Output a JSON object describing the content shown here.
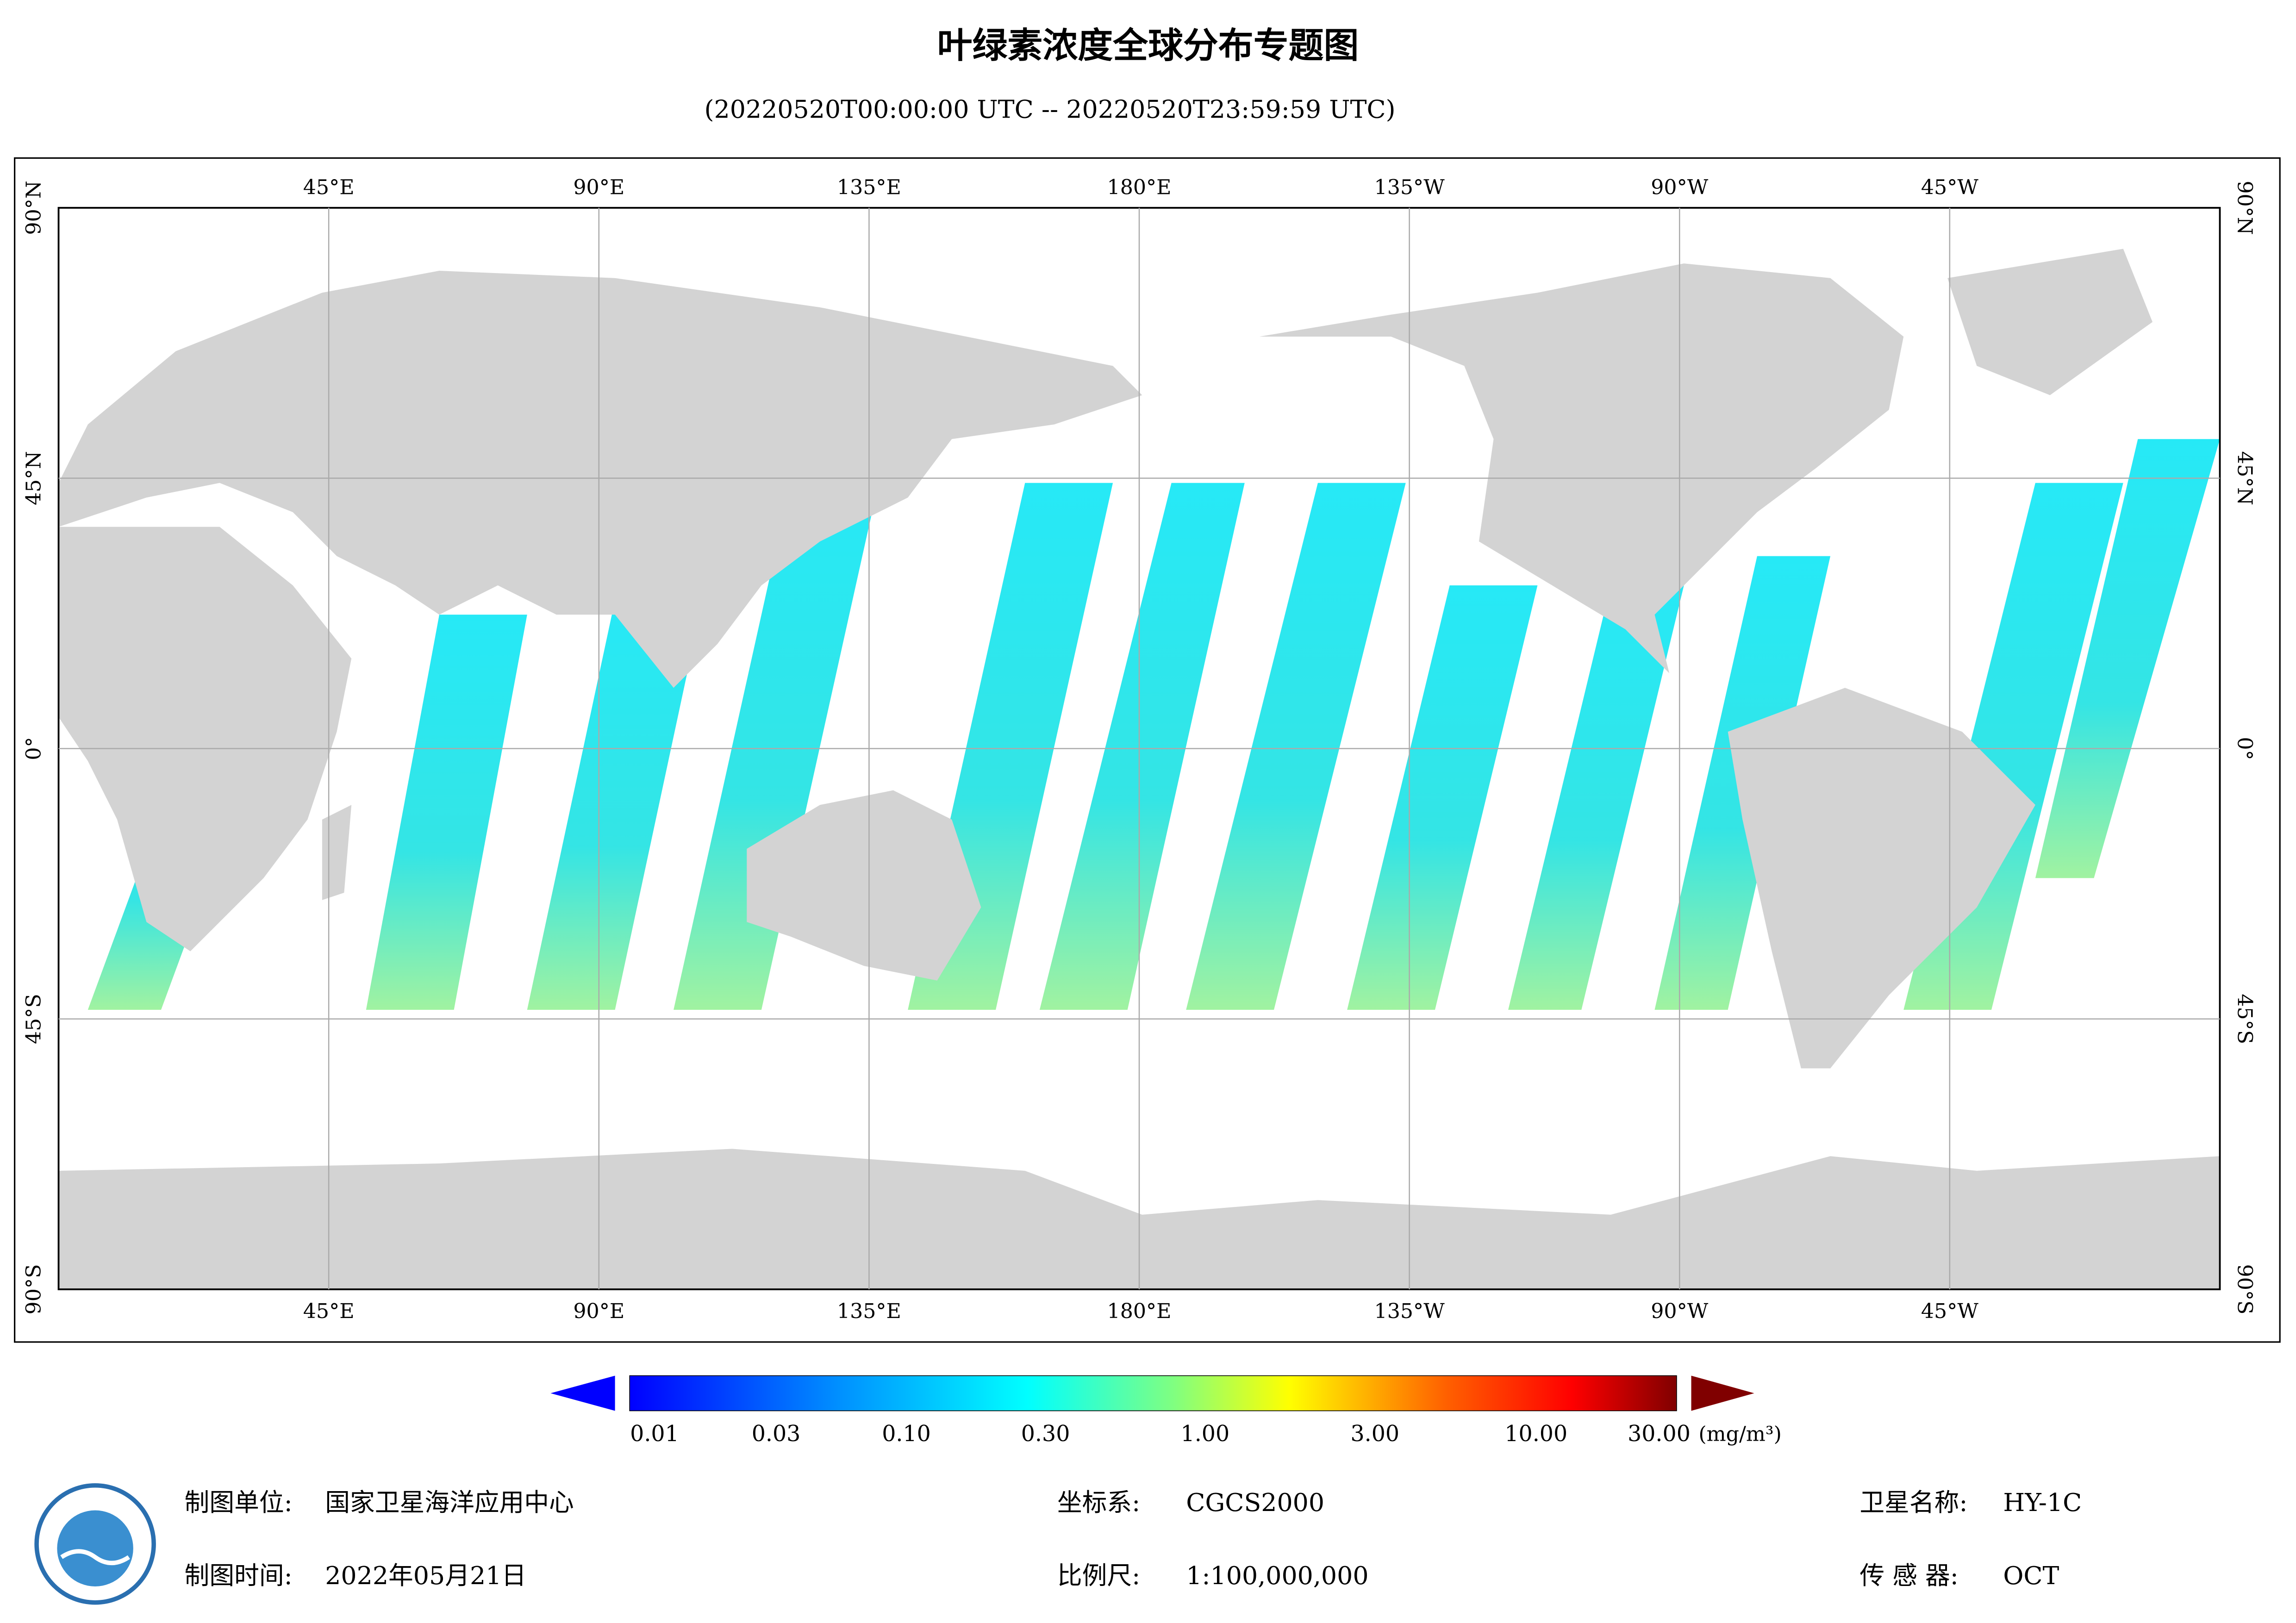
{
  "header": {
    "title": "叶绿素浓度全球分布专题图",
    "subtitle": "(20220520T00:00:00 UTC -- 20220520T23:59:59 UTC)"
  },
  "map": {
    "lon_labels": [
      "45°E",
      "90°E",
      "135°E",
      "180°E",
      "135°W",
      "90°W",
      "45°W"
    ],
    "lat_labels": [
      "90°N",
      "45°N",
      "0°",
      "45°S",
      "90°S"
    ]
  },
  "legend": {
    "labels": [
      "0.01",
      "0.03",
      "0.10",
      "0.30",
      "1.00",
      "3.00",
      "10.00",
      "30.00"
    ],
    "unit": "(mg/m³)"
  },
  "footer": {
    "unit_label": "制图单位:",
    "unit": "国家卫星海洋应用中心",
    "date_label": "制图时间:",
    "date": "2022年05月21日",
    "crs_label": "坐标系:",
    "crs": "CGCS2000",
    "scale_label": "比例尺:",
    "scale": "1:100,000,000",
    "satellite_label": "卫星名称:",
    "satellite": "HY-1C",
    "sensor_label": "传 感 器:",
    "sensor": "OCT"
  }
}
